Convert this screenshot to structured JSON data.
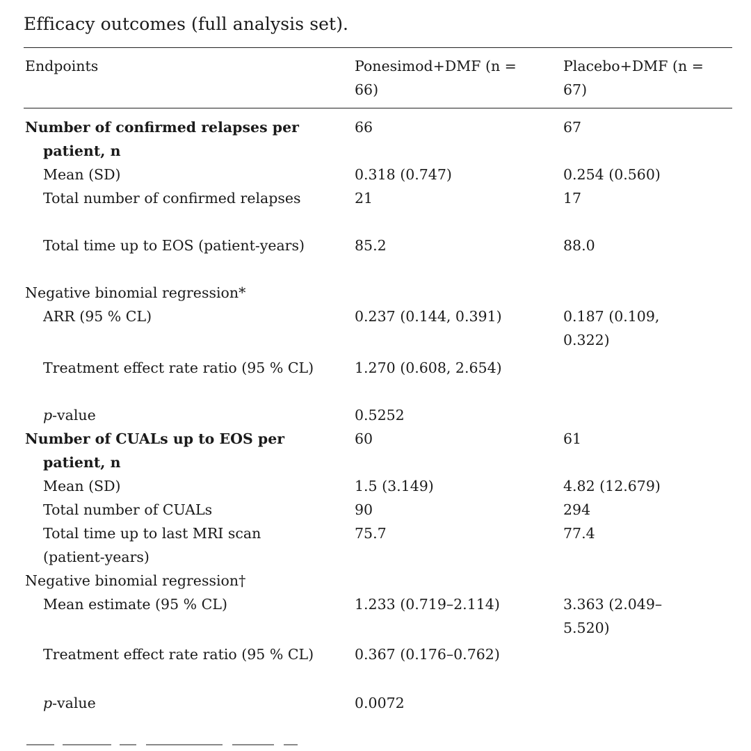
{
  "caption": "Efficacy outcomes (full analysis set).",
  "header": {
    "col1": "Endpoints",
    "col2": "Ponesimod+DMF (n = 66)",
    "col3": "Placebo+DMF (n = 67)"
  },
  "rows": {
    "r1": {
      "label": "Number of confirmed relapses per patient, n",
      "c2": "66",
      "c3": "67"
    },
    "r2": {
      "label": "Mean (SD)",
      "c2": "0.318 (0.747)",
      "c3": "0.254 (0.560)"
    },
    "r3": {
      "label": "Total number of confirmed relapses",
      "c2": "21",
      "c3": "17"
    },
    "r4": {
      "label": "Total time up to EOS (patient-years)",
      "c2": "85.2",
      "c3": "88.0"
    },
    "r5": {
      "label": "Negative binomial regression*"
    },
    "r6": {
      "label": "ARR (95 % CL)",
      "c2": "0.237 (0.144, 0.391)",
      "c3": "0.187 (0.109, 0.322)"
    },
    "r7": {
      "label": "Treatment effect rate ratio (95 % CL)",
      "c2": "1.270 (0.608, 2.654)"
    },
    "r8": {
      "label_i": "p",
      "label_rest": "-value",
      "c2": "0.5252"
    },
    "r9": {
      "label": "Number of CUALs up to EOS per patient, n",
      "c2": "60",
      "c3": "61"
    },
    "r10": {
      "label": "Mean (SD)",
      "c2": "1.5 (3.149)",
      "c3": "4.82 (12.679)"
    },
    "r11": {
      "label": "Total number of CUALs",
      "c2": "90",
      "c3": "294"
    },
    "r12": {
      "label": "Total time up to last MRI scan (patient-years)",
      "c2": "75.7",
      "c3": "77.4"
    },
    "r13": {
      "label": "Negative binomial regression†"
    },
    "r14": {
      "label": "Mean estimate (95 % CL)",
      "c2": "1.233 (0.719–2.114)",
      "c3": "3.363 (2.049–5.520)"
    },
    "r15": {
      "label": "Treatment effect rate ratio (95 % CL)",
      "c2": "0.367 (0.176–0.762)"
    },
    "r16": {
      "label_i": "p",
      "label_rest": "-value",
      "c2": "0.0072"
    }
  }
}
